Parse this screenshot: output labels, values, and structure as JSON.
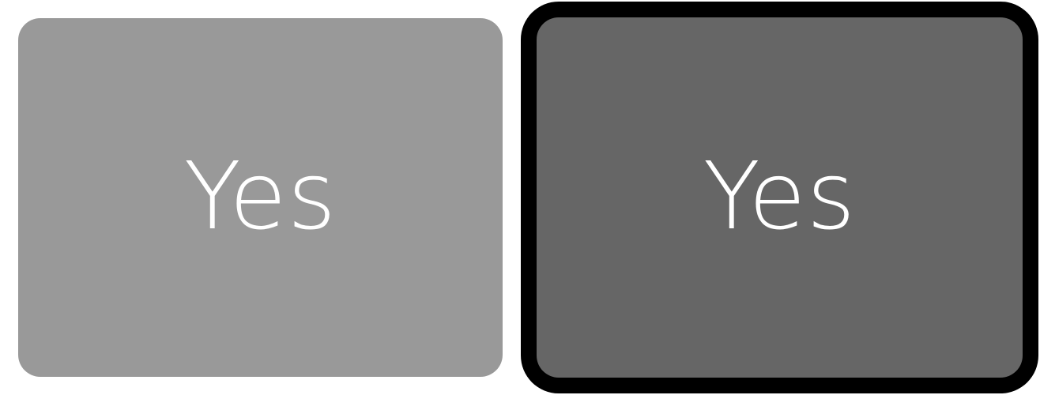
{
  "buttons": {
    "normal": {
      "label": "Yes",
      "state": "default",
      "background": "#999999",
      "text_color": "#ffffff"
    },
    "focused": {
      "label": "Yes",
      "state": "focused",
      "background": "#666666",
      "focus_ring_color": "#000000",
      "text_color": "#ffffff"
    }
  }
}
